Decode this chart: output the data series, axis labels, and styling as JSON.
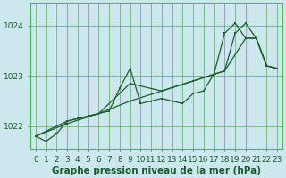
{
  "title": "Graphe pression niveau de la mer (hPa)",
  "bg_color": "#cce8ee",
  "grid_color": "#55aa66",
  "line_color": "#1a5c2a",
  "xlim": [
    -0.5,
    23.5
  ],
  "ylim": [
    1021.55,
    1024.45
  ],
  "yticks": [
    1022,
    1023,
    1024
  ],
  "xticks": [
    0,
    1,
    2,
    3,
    4,
    5,
    6,
    7,
    8,
    9,
    10,
    11,
    12,
    13,
    14,
    15,
    16,
    17,
    18,
    19,
    20,
    21,
    22,
    23
  ],
  "font_color": "#1a5c2a",
  "axis_label_fontsize": 7.5,
  "tick_fontsize": 6.5,
  "series_main": {
    "x": [
      0,
      1,
      2,
      3,
      4,
      5,
      6,
      7,
      8,
      9,
      10,
      11,
      12,
      13,
      14,
      15,
      16,
      17,
      18,
      19,
      20,
      21,
      22,
      23
    ],
    "y": [
      1021.8,
      1021.7,
      1021.85,
      1022.1,
      1022.15,
      1022.2,
      1022.25,
      1022.3,
      1022.75,
      1023.15,
      1022.45,
      1022.5,
      1022.55,
      1022.5,
      1022.45,
      1022.65,
      1022.7,
      1023.05,
      1023.85,
      1024.05,
      1023.75,
      1023.75,
      1023.2,
      1023.15
    ]
  },
  "series_a": {
    "x": [
      0,
      3,
      6,
      9,
      12,
      15,
      18,
      20,
      21,
      22,
      23
    ],
    "y": [
      1021.8,
      1022.05,
      1022.25,
      1022.5,
      1022.7,
      1022.9,
      1023.1,
      1023.75,
      1023.75,
      1023.2,
      1023.15
    ]
  },
  "series_b": {
    "x": [
      0,
      3,
      6,
      9,
      12,
      15,
      18,
      19,
      20,
      21,
      22,
      23
    ],
    "y": [
      1021.8,
      1022.1,
      1022.25,
      1022.85,
      1022.7,
      1022.9,
      1023.1,
      1023.85,
      1024.05,
      1023.75,
      1023.2,
      1023.15
    ]
  }
}
